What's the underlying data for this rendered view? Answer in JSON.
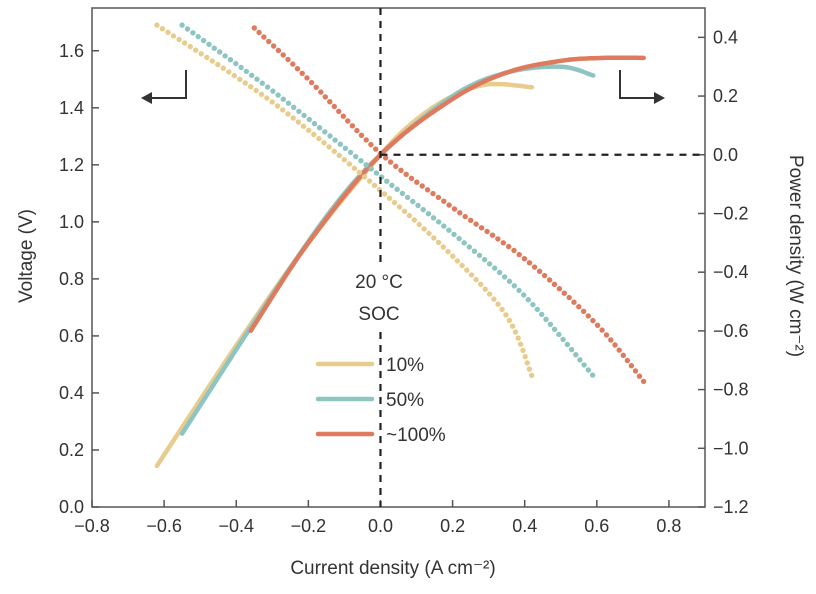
{
  "chart_data": {
    "type": "line",
    "xlabel": "Current density (A cm⁻²)",
    "ylabel_left": "Voltage (V)",
    "ylabel_right": "Power density (W cm⁻²)",
    "xlim": [
      -0.8,
      0.9
    ],
    "ylim_left": [
      0.0,
      1.75
    ],
    "ylim_right": [
      -1.2,
      0.5
    ],
    "x_ticks": [
      "−0.8",
      "−0.6",
      "−0.4",
      "−0.2",
      "0.0",
      "0.2",
      "0.4",
      "0.6",
      "0.8"
    ],
    "y_left_ticks": [
      "0.0",
      "0.2",
      "0.4",
      "0.6",
      "0.8",
      "1.0",
      "1.2",
      "1.4",
      "1.6"
    ],
    "y_right_ticks": [
      "−1.2",
      "−1.0",
      "−0.8",
      "−0.6",
      "−0.4",
      "−0.2",
      "0.0",
      "0.2",
      "0.4"
    ],
    "x_tick_values": [
      -0.8,
      -0.6,
      -0.4,
      -0.2,
      0.0,
      0.2,
      0.4,
      0.6,
      0.8
    ],
    "y_left_tick_values": [
      0.0,
      0.2,
      0.4,
      0.6,
      0.8,
      1.0,
      1.2,
      1.4,
      1.6
    ],
    "y_right_tick_values": [
      -1.2,
      -1.0,
      -0.8,
      -0.6,
      -0.4,
      -0.2,
      0.0,
      0.2,
      0.4
    ],
    "annotation": [
      "20 °C",
      "SOC"
    ],
    "legend_title": "SOC",
    "series": [
      {
        "name": "10%",
        "color": "#e8cc8e",
        "voltage_points": [
          [
            -0.62,
            1.69
          ],
          [
            -0.3,
            1.42
          ],
          [
            0.0,
            1.11
          ],
          [
            0.2,
            0.88
          ],
          [
            0.35,
            0.67
          ],
          [
            0.42,
            0.46
          ]
        ],
        "power_points": [
          [
            -0.62,
            -1.06
          ],
          [
            -0.4,
            -0.65
          ],
          [
            -0.2,
            -0.3
          ],
          [
            0.0,
            0.0
          ],
          [
            0.1,
            0.12
          ],
          [
            0.2,
            0.2
          ],
          [
            0.3,
            0.24
          ],
          [
            0.42,
            0.23
          ]
        ]
      },
      {
        "name": "50%",
        "color": "#8ec5c2",
        "voltage_points": [
          [
            -0.55,
            1.69
          ],
          [
            -0.3,
            1.46
          ],
          [
            0.0,
            1.16
          ],
          [
            0.2,
            0.96
          ],
          [
            0.4,
            0.74
          ],
          [
            0.59,
            0.46
          ]
        ],
        "power_points": [
          [
            -0.55,
            -0.95
          ],
          [
            -0.35,
            -0.57
          ],
          [
            -0.15,
            -0.21
          ],
          [
            0.0,
            0.0
          ],
          [
            0.2,
            0.2
          ],
          [
            0.35,
            0.28
          ],
          [
            0.5,
            0.3
          ],
          [
            0.59,
            0.27
          ]
        ]
      },
      {
        "name": "~100%",
        "color": "#de7b5e",
        "voltage_points": [
          [
            -0.35,
            1.68
          ],
          [
            -0.2,
            1.5
          ],
          [
            0.0,
            1.24
          ],
          [
            0.2,
            1.05
          ],
          [
            0.4,
            0.87
          ],
          [
            0.6,
            0.64
          ],
          [
            0.73,
            0.44
          ]
        ],
        "power_points": [
          [
            -0.36,
            -0.6
          ],
          [
            -0.2,
            -0.3
          ],
          [
            0.0,
            0.0
          ],
          [
            0.2,
            0.19
          ],
          [
            0.35,
            0.28
          ],
          [
            0.5,
            0.32
          ],
          [
            0.62,
            0.33
          ],
          [
            0.73,
            0.33
          ]
        ]
      }
    ]
  }
}
